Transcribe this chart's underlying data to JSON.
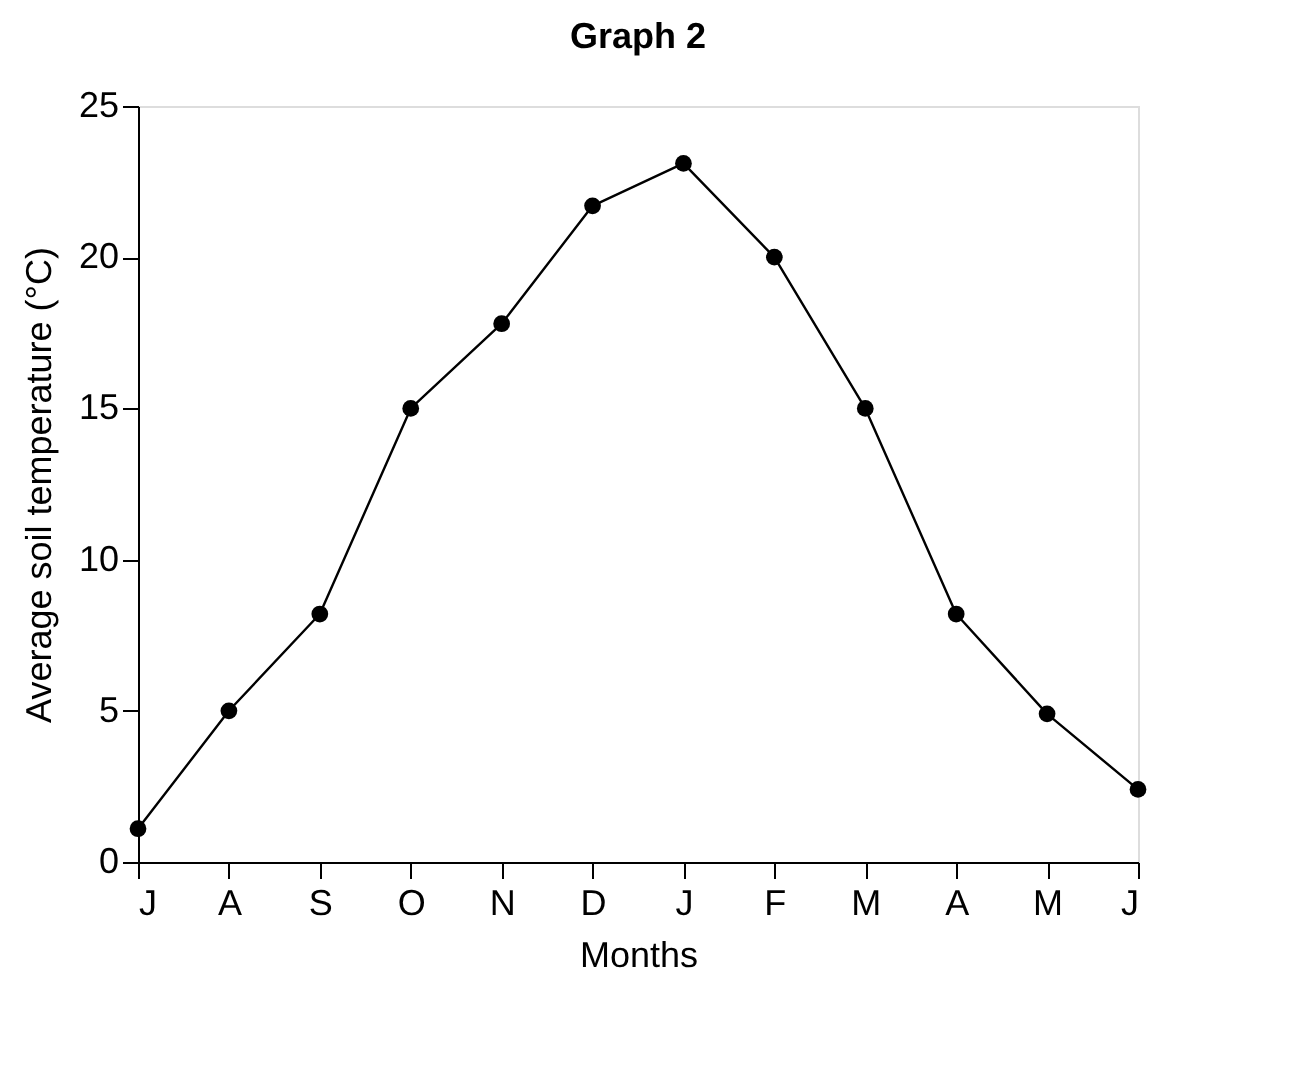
{
  "chart_data": {
    "type": "line",
    "title": "Graph 2",
    "xlabel": "Months",
    "ylabel": "Average soil temperature (°C)",
    "categories": [
      "J",
      "A",
      "S",
      "O",
      "N",
      "D",
      "J",
      "F",
      "M",
      "A",
      "M",
      "J"
    ],
    "series": [
      {
        "color": "#000000",
        "values": [
          1.1,
          5.0,
          8.2,
          15.0,
          17.8,
          21.7,
          23.1,
          20.0,
          15.0,
          8.2,
          4.9,
          2.4
        ]
      }
    ],
    "ylim": [
      0,
      25
    ],
    "yticks": [
      0,
      5,
      10,
      15,
      20,
      25
    ],
    "grid": false,
    "marker": "circle",
    "line_style": "solid"
  }
}
